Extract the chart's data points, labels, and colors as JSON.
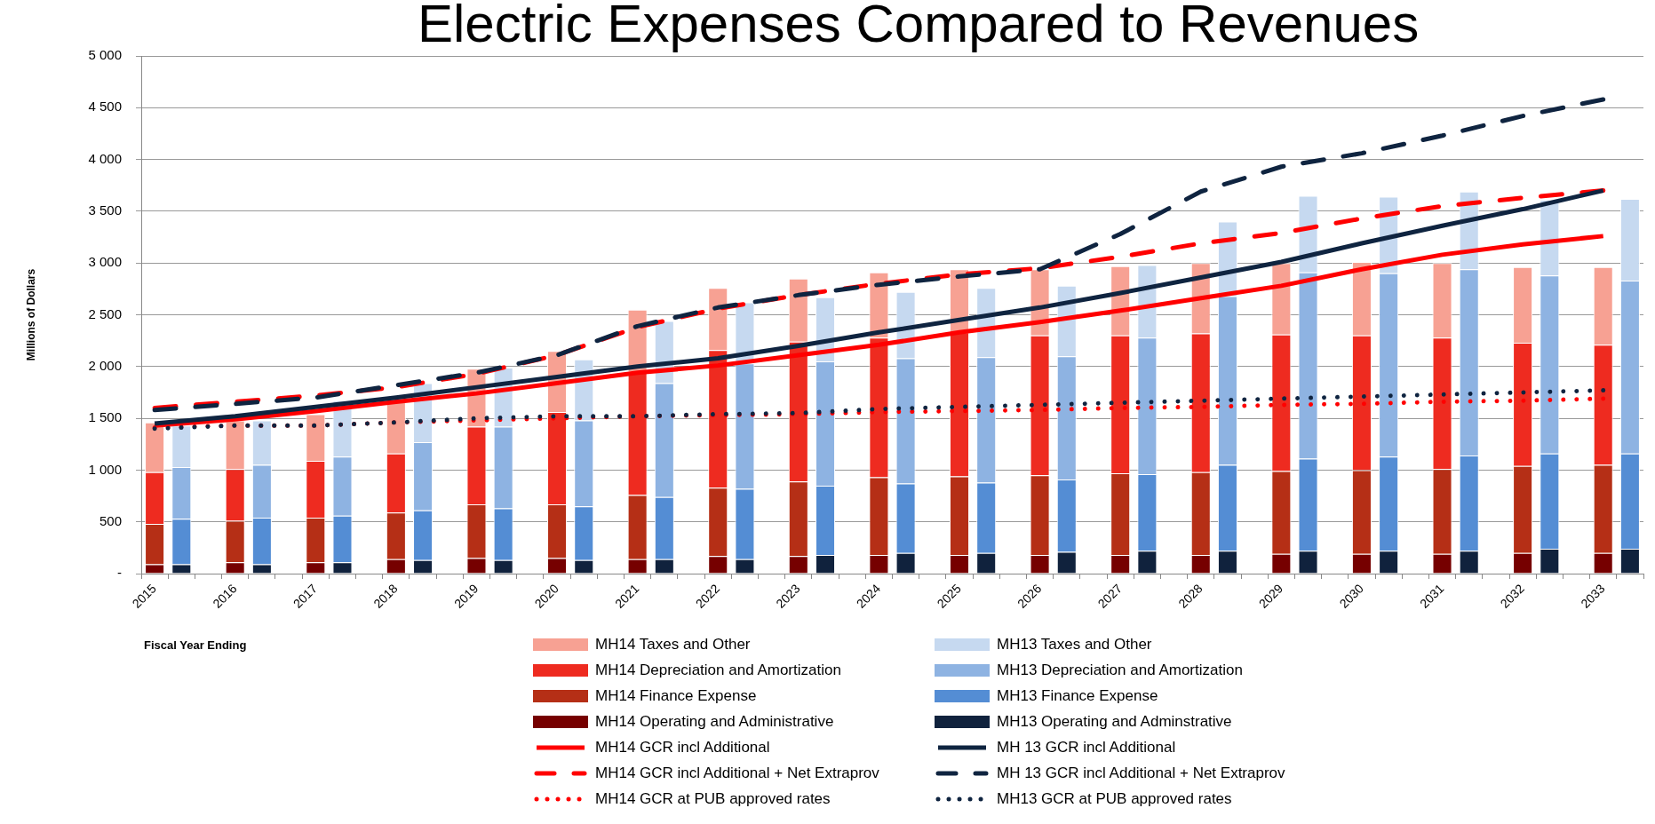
{
  "chart_data": {
    "type": "bar",
    "title": "Electric Expenses Compared to Revenues",
    "xlabel": "Fiscal Year Ending",
    "ylabel": "Millions of Dollars",
    "categories": [
      "2015",
      null,
      null,
      "2016",
      null,
      null,
      "2017",
      null,
      null,
      "2018",
      null,
      null,
      "2019",
      null,
      null,
      "2020",
      null,
      null,
      "2021",
      null,
      null,
      "2022",
      null,
      null,
      "2023",
      null,
      null,
      "2024",
      null,
      null,
      "2025",
      null,
      null,
      "2026",
      null,
      null,
      "2027",
      null,
      null,
      "2028",
      null,
      null,
      "2029",
      null,
      null,
      "2030",
      null,
      null,
      "2031",
      null,
      null,
      "2032",
      null,
      null,
      "2033",
      null
    ],
    "stacked": true,
    "ylim": [
      0,
      5000
    ],
    "yticks": [
      {
        "value": 0,
        "label": "-"
      },
      500,
      {
        "value": 1000,
        "label": "1 000"
      },
      {
        "value": 1500,
        "label": "1 500"
      },
      {
        "value": 2000,
        "label": "2 000"
      },
      {
        "value": 2500,
        "label": "2 500"
      },
      {
        "value": 3000,
        "label": "3 000"
      },
      {
        "value": 3500,
        "label": "3 500"
      },
      {
        "value": 4000,
        "label": "4 000"
      },
      {
        "value": 4500,
        "label": "4 500"
      },
      {
        "value": 5000,
        "label": "5 000"
      }
    ],
    "grid": "y",
    "legend": "bottom",
    "series": [
      {
        "name": "MH14 Operating and Administrative",
        "color": "#760000",
        "values": [
          90,
          null,
          null,
          110,
          null,
          null,
          110,
          null,
          null,
          140,
          null,
          null,
          150,
          null,
          null,
          150,
          null,
          null,
          140,
          null,
          null,
          170,
          null,
          null,
          170,
          null,
          null,
          180,
          null,
          null,
          180,
          null,
          null,
          180,
          null,
          null,
          180,
          null,
          null,
          180,
          null,
          null,
          190,
          null,
          null,
          190,
          null,
          null,
          190,
          null,
          null,
          200,
          null,
          null,
          200,
          null
        ]
      },
      {
        "name": "MH14 Finance Expense",
        "color": "#b52f16",
        "values": [
          390,
          null,
          null,
          400,
          null,
          null,
          430,
          null,
          null,
          450,
          null,
          null,
          520,
          null,
          null,
          520,
          null,
          null,
          620,
          null,
          null,
          660,
          null,
          null,
          720,
          null,
          null,
          750,
          null,
          null,
          760,
          null,
          null,
          770,
          null,
          null,
          790,
          null,
          null,
          800,
          null,
          null,
          800,
          null,
          null,
          810,
          null,
          null,
          820,
          null,
          null,
          840,
          null,
          null,
          850,
          null
        ]
      },
      {
        "name": "MH14 Depreciation and Amortization",
        "color": "#ee2b20",
        "values": [
          500,
          null,
          null,
          500,
          null,
          null,
          550,
          null,
          null,
          570,
          null,
          null,
          750,
          null,
          null,
          890,
          null,
          null,
          1190,
          null,
          null,
          1330,
          null,
          null,
          1350,
          null,
          null,
          1350,
          null,
          null,
          1390,
          null,
          null,
          1350,
          null,
          null,
          1330,
          null,
          null,
          1340,
          null,
          null,
          1320,
          null,
          null,
          1300,
          null,
          null,
          1270,
          null,
          null,
          1190,
          null,
          null,
          1160,
          null
        ]
      },
      {
        "name": "MH14 Taxes and Other",
        "color": "#f7a193",
        "values": [
          480,
          null,
          null,
          470,
          null,
          null,
          450,
          null,
          null,
          500,
          null,
          null,
          560,
          null,
          null,
          590,
          null,
          null,
          600,
          null,
          null,
          600,
          null,
          null,
          610,
          null,
          null,
          630,
          null,
          null,
          610,
          null,
          null,
          640,
          null,
          null,
          670,
          null,
          null,
          680,
          null,
          null,
          690,
          null,
          null,
          710,
          null,
          null,
          720,
          null,
          null,
          730,
          null,
          null,
          750,
          null
        ]
      },
      {
        "name": "MH14 GCR incl Additional",
        "type": "line",
        "line_style": "solid",
        "color": "#ff0000",
        "values": [
          1430,
          null,
          null,
          1490,
          null,
          null,
          1570,
          null,
          null,
          1660,
          null,
          null,
          1740,
          null,
          null,
          1840,
          null,
          null,
          1940,
          null,
          null,
          2010,
          null,
          null,
          2110,
          null,
          null,
          2210,
          null,
          null,
          2330,
          null,
          null,
          2430,
          null,
          null,
          2540,
          null,
          null,
          2660,
          null,
          null,
          2780,
          null,
          null,
          2940,
          null,
          null,
          3080,
          null,
          null,
          3180,
          null,
          null,
          3260,
          null
        ]
      },
      {
        "name": "MH14 GCR incl Additional + Net Extraprov",
        "type": "line",
        "line_style": "dashed",
        "color": "#ff0000",
        "values": [
          1600,
          null,
          null,
          1660,
          null,
          null,
          1720,
          null,
          null,
          1800,
          null,
          null,
          1930,
          null,
          null,
          2110,
          null,
          null,
          2380,
          null,
          null,
          2560,
          null,
          null,
          2690,
          null,
          null,
          2800,
          null,
          null,
          2890,
          null,
          null,
          2950,
          null,
          null,
          3060,
          null,
          null,
          3190,
          null,
          null,
          3290,
          null,
          null,
          3430,
          null,
          null,
          3550,
          null,
          null,
          3630,
          null,
          null,
          3700,
          null
        ]
      },
      {
        "name": "MH14 GCR at PUB approved rates",
        "type": "line",
        "line_style": "dotted",
        "color": "#ff0000",
        "values": [
          1410,
          null,
          null,
          1430,
          null,
          null,
          1430,
          null,
          null,
          1460,
          null,
          null,
          1480,
          null,
          null,
          1500,
          null,
          null,
          1520,
          null,
          null,
          1530,
          null,
          null,
          1540,
          null,
          null,
          1560,
          null,
          null,
          1570,
          null,
          null,
          1580,
          null,
          null,
          1600,
          null,
          null,
          1610,
          null,
          null,
          1630,
          null,
          null,
          1640,
          null,
          null,
          1660,
          null,
          null,
          1670,
          null,
          null,
          1690,
          null
        ]
      },
      {
        "name": "MH13 Operating and Adminstrative",
        "color": "#10223d",
        "values": [
          null,
          90,
          null,
          null,
          90,
          null,
          null,
          110,
          null,
          null,
          130,
          null,
          null,
          130,
          null,
          null,
          130,
          null,
          null,
          140,
          null,
          null,
          140,
          null,
          null,
          180,
          null,
          null,
          200,
          null,
          null,
          200,
          null,
          null,
          210,
          null,
          null,
          220,
          null,
          null,
          220,
          null,
          null,
          220,
          null,
          null,
          220,
          null,
          null,
          220,
          null,
          null,
          240,
          null,
          null,
          240
        ]
      },
      {
        "name": "MH13 Finance Expense",
        "color": "#548dd4",
        "values": [
          null,
          440,
          null,
          null,
          450,
          null,
          null,
          450,
          null,
          null,
          480,
          null,
          null,
          500,
          null,
          null,
          520,
          null,
          null,
          600,
          null,
          null,
          680,
          null,
          null,
          670,
          null,
          null,
          670,
          null,
          null,
          680,
          null,
          null,
          700,
          null,
          null,
          740,
          null,
          null,
          830,
          null,
          null,
          890,
          null,
          null,
          910,
          null,
          null,
          920,
          null,
          null,
          920,
          null,
          null,
          920
        ]
      },
      {
        "name": "MH13 Depreciation and Amortization",
        "color": "#8eb3e2",
        "values": [
          null,
          500,
          null,
          null,
          510,
          null,
          null,
          570,
          null,
          null,
          660,
          null,
          null,
          790,
          null,
          null,
          830,
          null,
          null,
          1100,
          null,
          null,
          1210,
          null,
          null,
          1200,
          null,
          null,
          1210,
          null,
          null,
          1210,
          null,
          null,
          1190,
          null,
          null,
          1320,
          null,
          null,
          1630,
          null,
          null,
          1800,
          null,
          null,
          1770,
          null,
          null,
          1800,
          null,
          null,
          1720,
          null,
          null,
          1670
        ]
      },
      {
        "name": "MH13 Taxes and Other",
        "color": "#c6d9f0",
        "values": [
          null,
          400,
          null,
          null,
          430,
          null,
          null,
          540,
          null,
          null,
          570,
          null,
          null,
          570,
          null,
          null,
          590,
          null,
          null,
          600,
          null,
          null,
          590,
          null,
          null,
          620,
          null,
          null,
          640,
          null,
          null,
          670,
          null,
          null,
          680,
          null,
          null,
          700,
          null,
          null,
          720,
          null,
          null,
          740,
          null,
          null,
          740,
          null,
          null,
          750,
          null,
          null,
          730,
          null,
          null,
          790
        ]
      },
      {
        "name": "MH 13 GCR incl Additional",
        "type": "line",
        "line_style": "solid",
        "color": "#0f2440",
        "values": [
          1450,
          null,
          null,
          1520,
          null,
          null,
          1610,
          null,
          null,
          1700,
          null,
          null,
          1800,
          null,
          null,
          1900,
          null,
          null,
          2000,
          null,
          null,
          2080,
          null,
          null,
          2200,
          null,
          null,
          2330,
          null,
          null,
          2450,
          null,
          null,
          2570,
          null,
          null,
          2710,
          null,
          null,
          2860,
          null,
          null,
          3010,
          null,
          null,
          3190,
          null,
          null,
          3360,
          null,
          null,
          3520,
          null,
          null,
          3700,
          null
        ]
      },
      {
        "name": "MH 13 GCR incl Additional + Net Extraprov",
        "type": "line",
        "line_style": "dashed",
        "color": "#0f2440",
        "values": [
          1580,
          null,
          null,
          1640,
          null,
          null,
          1700,
          null,
          null,
          1820,
          null,
          null,
          1940,
          null,
          null,
          2110,
          null,
          null,
          2390,
          null,
          null,
          2570,
          null,
          null,
          2690,
          null,
          null,
          2790,
          null,
          null,
          2870,
          null,
          null,
          2940,
          null,
          null,
          3280,
          null,
          null,
          3690,
          null,
          null,
          3930,
          null,
          null,
          4060,
          null,
          null,
          4230,
          null,
          null,
          4420,
          null,
          null,
          4580,
          null
        ]
      },
      {
        "name": "MH13 GCR at PUB approved rates",
        "type": "line",
        "line_style": "dotted",
        "color": "#0f2440",
        "values": [
          1400,
          null,
          null,
          1430,
          null,
          null,
          1430,
          null,
          null,
          1460,
          null,
          null,
          1500,
          null,
          null,
          1520,
          null,
          null,
          1520,
          null,
          null,
          1540,
          null,
          null,
          1550,
          null,
          null,
          1590,
          null,
          null,
          1610,
          null,
          null,
          1630,
          null,
          null,
          1650,
          null,
          null,
          1670,
          null,
          null,
          1690,
          null,
          null,
          1710,
          null,
          null,
          1730,
          null,
          null,
          1750,
          null,
          null,
          1770,
          null
        ]
      }
    ]
  }
}
